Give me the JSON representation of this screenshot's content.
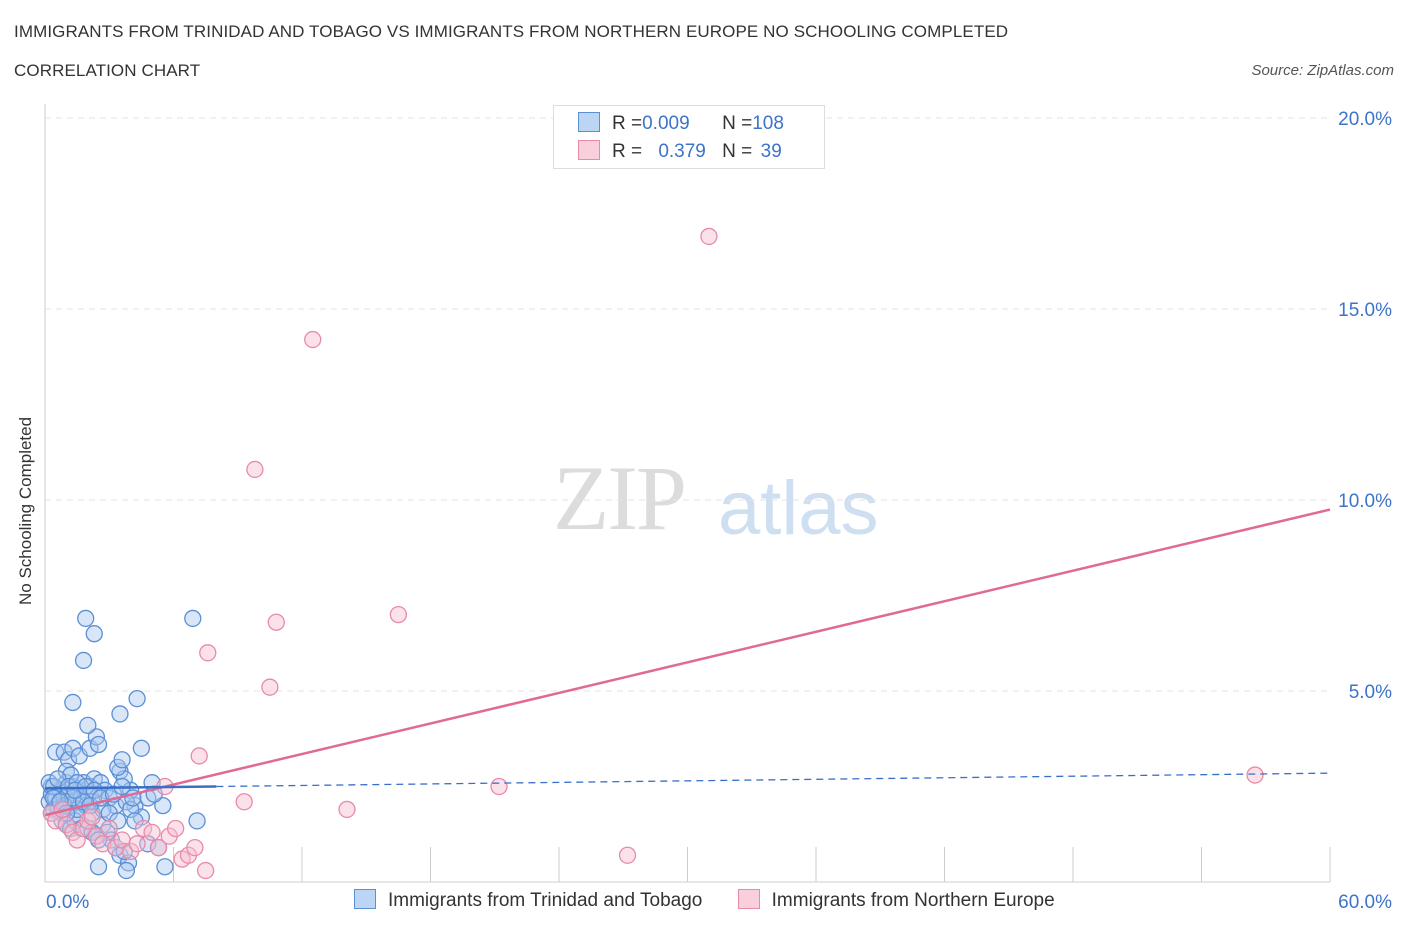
{
  "header": {
    "title_line1": "IMMIGRANTS FROM TRINIDAD AND TOBAGO VS IMMIGRANTS FROM NORTHERN EUROPE NO SCHOOLING COMPLETED",
    "title_line2": "CORRELATION CHART",
    "source": "Source: ZipAtlas.com"
  },
  "watermark": {
    "zip": "ZIP",
    "atlas": "atlas"
  },
  "legend": {
    "rows": [
      {
        "r_label": "R = ",
        "r_value": "0.009",
        "n_label": "N = ",
        "n_value": "108"
      },
      {
        "r_label": "R = ",
        "r_value": "0.379",
        "n_label": "N = ",
        "n_value": "39"
      }
    ]
  },
  "colors": {
    "blue_fill": "#a9c8f0",
    "blue_stroke": "#5b8fd6",
    "blue_line": "#3a6fc8",
    "pink_fill": "#f6bfd0",
    "pink_stroke": "#e88aa8",
    "pink_line": "#e06a94",
    "grid": "#e3e3e3",
    "tick_text": "#3d73c9"
  },
  "chart_data": {
    "type": "scatter",
    "title": "IMMIGRANTS FROM TRINIDAD AND TOBAGO VS IMMIGRANTS FROM NORTHERN EUROPE NO SCHOOLING COMPLETED CORRELATION CHART",
    "xlabel": "",
    "ylabel": "No Schooling Completed",
    "xlim": [
      0,
      60
    ],
    "ylim": [
      0,
      20
    ],
    "x_tick_labels": [
      "0.0%",
      "60.0%"
    ],
    "y_ticks": [
      5,
      10,
      15,
      20
    ],
    "y_tick_labels": [
      "5.0%",
      "10.0%",
      "15.0%",
      "20.0%"
    ],
    "grid": true,
    "legend_position": "top-center",
    "series": [
      {
        "name": "Immigrants from Trinidad and Tobago",
        "R": 0.009,
        "N": 108,
        "trend": {
          "x": [
            0,
            8.0
          ],
          "y": [
            2.45,
            2.5
          ],
          "dashed_extension": {
            "x": [
              8.0,
              60
            ],
            "y": [
              2.5,
              2.85
            ]
          }
        },
        "points": [
          [
            0.2,
            2.1
          ],
          [
            0.3,
            2.3
          ],
          [
            0.4,
            1.9
          ],
          [
            0.5,
            2.2
          ],
          [
            0.6,
            2.0
          ],
          [
            0.3,
            2.5
          ],
          [
            0.7,
            2.4
          ],
          [
            0.8,
            1.8
          ],
          [
            1.0,
            2.6
          ],
          [
            0.9,
            2.2
          ],
          [
            1.1,
            2.3
          ],
          [
            1.2,
            2.0
          ],
          [
            1.3,
            2.5
          ],
          [
            1.4,
            2.1
          ],
          [
            1.5,
            1.7
          ],
          [
            1.6,
            2.4
          ],
          [
            1.7,
            2.2
          ],
          [
            1.8,
            2.6
          ],
          [
            1.9,
            2.0
          ],
          [
            2.0,
            2.3
          ],
          [
            2.1,
            2.5
          ],
          [
            2.2,
            2.1
          ],
          [
            2.3,
            2.7
          ],
          [
            0.5,
            3.4
          ],
          [
            0.9,
            3.4
          ],
          [
            1.1,
            3.2
          ],
          [
            1.3,
            3.5
          ],
          [
            1.6,
            3.3
          ],
          [
            2.1,
            3.5
          ],
          [
            2.4,
            3.8
          ],
          [
            1.0,
            2.9
          ],
          [
            1.2,
            2.8
          ],
          [
            2.6,
            2.6
          ],
          [
            2.8,
            2.4
          ],
          [
            3.0,
            2.2
          ],
          [
            3.3,
            2.0
          ],
          [
            3.5,
            2.9
          ],
          [
            3.7,
            2.7
          ],
          [
            4.0,
            2.4
          ],
          [
            4.2,
            2.0
          ],
          [
            4.5,
            1.7
          ],
          [
            4.8,
            2.2
          ],
          [
            1.3,
            4.7
          ],
          [
            2.0,
            4.1
          ],
          [
            2.5,
            3.6
          ],
          [
            3.5,
            4.4
          ],
          [
            4.3,
            4.8
          ],
          [
            4.5,
            3.5
          ],
          [
            5.0,
            2.6
          ],
          [
            5.5,
            2.0
          ],
          [
            1.8,
            5.8
          ],
          [
            1.9,
            6.9
          ],
          [
            2.3,
            6.5
          ],
          [
            6.9,
            6.9
          ],
          [
            3.4,
            3.0
          ],
          [
            3.6,
            3.2
          ],
          [
            3.8,
            2.1
          ],
          [
            4.0,
            1.9
          ],
          [
            2.7,
            1.5
          ],
          [
            2.9,
            1.3
          ],
          [
            3.1,
            1.1
          ],
          [
            3.3,
            0.9
          ],
          [
            3.5,
            0.7
          ],
          [
            3.9,
            0.5
          ],
          [
            4.2,
            1.6
          ],
          [
            2.5,
            0.4
          ],
          [
            3.7,
            0.8
          ],
          [
            4.8,
            1.0
          ],
          [
            5.3,
            0.9
          ],
          [
            5.1,
            2.3
          ],
          [
            5.6,
            0.4
          ],
          [
            3.8,
            0.3
          ],
          [
            7.1,
            1.6
          ],
          [
            0.2,
            2.6
          ],
          [
            0.4,
            2.5
          ],
          [
            0.6,
            1.9
          ],
          [
            0.8,
            1.6
          ],
          [
            1.0,
            1.5
          ],
          [
            1.2,
            1.4
          ],
          [
            1.4,
            1.6
          ],
          [
            1.5,
            1.9
          ],
          [
            1.7,
            1.4
          ],
          [
            2.0,
            1.4
          ],
          [
            2.2,
            1.3
          ],
          [
            2.4,
            1.2
          ],
          [
            0.3,
            1.8
          ],
          [
            0.6,
            2.7
          ],
          [
            0.9,
            2.0
          ],
          [
            1.1,
            2.5
          ],
          [
            1.3,
            2.2
          ],
          [
            1.5,
            2.6
          ],
          [
            1.8,
            2.1
          ],
          [
            2.2,
            1.8
          ],
          [
            2.5,
            1.1
          ],
          [
            2.7,
            1.9
          ],
          [
            0.4,
            2.2
          ],
          [
            0.7,
            2.1
          ],
          [
            1.0,
            1.8
          ],
          [
            1.4,
            2.4
          ],
          [
            1.9,
            2.5
          ],
          [
            2.1,
            2.0
          ],
          [
            2.3,
            2.4
          ],
          [
            2.6,
            2.2
          ],
          [
            3.0,
            1.8
          ],
          [
            3.2,
            2.3
          ],
          [
            3.4,
            1.6
          ],
          [
            3.6,
            2.5
          ],
          [
            4.1,
            2.2
          ]
        ]
      },
      {
        "name": "Immigrants from Northern Europe",
        "R": 0.379,
        "N": 39,
        "trend": {
          "x": [
            0,
            60
          ],
          "y": [
            1.75,
            9.75
          ]
        },
        "points": [
          [
            0.3,
            1.8
          ],
          [
            0.5,
            1.6
          ],
          [
            0.8,
            1.9
          ],
          [
            1.0,
            1.5
          ],
          [
            1.3,
            1.3
          ],
          [
            1.5,
            1.1
          ],
          [
            1.8,
            1.4
          ],
          [
            2.0,
            1.6
          ],
          [
            2.4,
            1.2
          ],
          [
            2.7,
            1.0
          ],
          [
            3.0,
            1.4
          ],
          [
            3.3,
            0.9
          ],
          [
            3.6,
            1.1
          ],
          [
            4.0,
            0.8
          ],
          [
            4.3,
            1.0
          ],
          [
            4.6,
            1.4
          ],
          [
            5.0,
            1.3
          ],
          [
            5.3,
            0.9
          ],
          [
            5.6,
            2.5
          ],
          [
            5.8,
            1.2
          ],
          [
            6.1,
            1.4
          ],
          [
            6.4,
            0.6
          ],
          [
            6.7,
            0.7
          ],
          [
            7.0,
            0.9
          ],
          [
            7.2,
            3.3
          ],
          [
            7.5,
            0.3
          ],
          [
            7.6,
            6.0
          ],
          [
            9.3,
            2.1
          ],
          [
            9.8,
            10.8
          ],
          [
            10.5,
            5.1
          ],
          [
            10.8,
            6.8
          ],
          [
            12.5,
            14.2
          ],
          [
            14.1,
            1.9
          ],
          [
            16.5,
            7.0
          ],
          [
            21.2,
            2.5
          ],
          [
            27.2,
            0.7
          ],
          [
            31.0,
            16.9
          ],
          [
            56.5,
            2.8
          ],
          [
            2.2,
            1.7
          ]
        ]
      }
    ]
  },
  "bottom_legend": {
    "items": [
      "Immigrants from Trinidad and Tobago",
      "Immigrants from Northern Europe"
    ]
  }
}
